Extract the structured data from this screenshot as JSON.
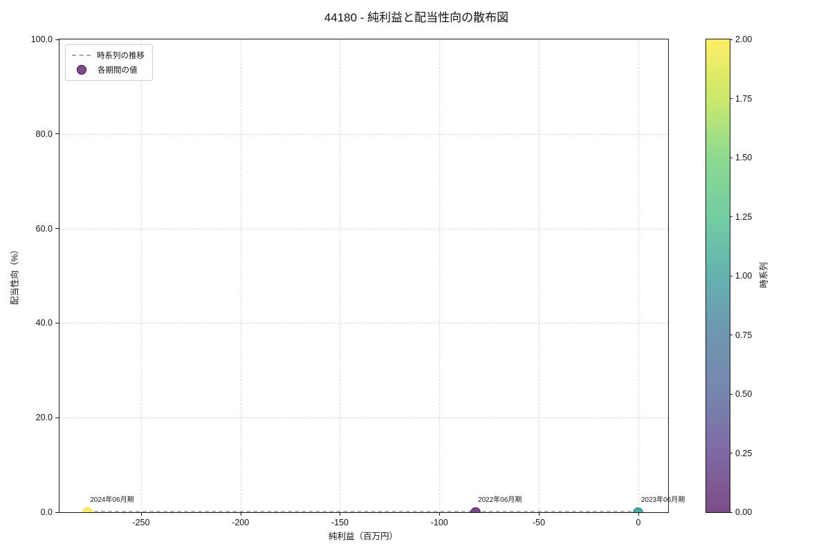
{
  "title": "44180 - 純利益と配当性向の散布図",
  "legend": {
    "items": [
      {
        "label": "時系列の推移",
        "type": "dashed-line",
        "color": "#a9a9a9"
      },
      {
        "label": "各期間の値",
        "type": "marker",
        "color": "#7c4d87",
        "edge": "#440154"
      }
    ]
  },
  "chart_data": {
    "type": "scatter",
    "title": "44180 - 純利益と配当性向の散布図",
    "xlabel": "純利益（百万円）",
    "ylabel": "配当性向（%）",
    "xlim": [
      -291,
      15
    ],
    "ylim": [
      0,
      100
    ],
    "grid": true,
    "x_ticks": [
      {
        "value": -250,
        "label": "-250"
      },
      {
        "value": -200,
        "label": "-200"
      },
      {
        "value": -150,
        "label": "-150"
      },
      {
        "value": -100,
        "label": "-100"
      },
      {
        "value": -50,
        "label": "-50"
      },
      {
        "value": 0,
        "label": "0"
      }
    ],
    "y_ticks": [
      {
        "value": 0,
        "label": "0.0"
      },
      {
        "value": 20,
        "label": "20.0"
      },
      {
        "value": 40,
        "label": "40.0"
      },
      {
        "value": 60,
        "label": "60.0"
      },
      {
        "value": 80,
        "label": "80.0"
      },
      {
        "value": 100,
        "label": "100.0"
      }
    ],
    "series": [
      {
        "name": "各期間の値",
        "points": [
          {
            "label": "2022年06月期",
            "x": -82,
            "y": 0.0,
            "t": 0,
            "color": "#7b4d88",
            "edge": "#440154"
          },
          {
            "label": "2023年06月期",
            "x": 0,
            "y": 0.0,
            "t": 1,
            "color": "#4da7a3",
            "edge": "#21918c"
          },
          {
            "label": "2024年06月期",
            "x": -277,
            "y": 0.0,
            "t": 2,
            "color": "#fdea6b",
            "edge": "#f2da30"
          }
        ]
      }
    ],
    "line": {
      "name": "時系列の推移",
      "style": "dashed",
      "color": "#b3b3b3",
      "path_x": [
        -82,
        0,
        -277
      ],
      "path_y": [
        0,
        0,
        0
      ]
    },
    "colorbar": {
      "label": "時系列",
      "min": 0,
      "max": 2,
      "ticks": [
        {
          "value": 0,
          "label": "0.00"
        },
        {
          "value": 0.25,
          "label": "0.25"
        },
        {
          "value": 0.5,
          "label": "0.50"
        },
        {
          "value": 0.75,
          "label": "0.75"
        },
        {
          "value": 1,
          "label": "1.00"
        },
        {
          "value": 1.25,
          "label": "1.25"
        },
        {
          "value": 1.5,
          "label": "1.50"
        },
        {
          "value": 1.75,
          "label": "1.75"
        },
        {
          "value": 2,
          "label": "2.00"
        }
      ],
      "gradient": [
        {
          "pos": 0,
          "color": "#7c4d87"
        },
        {
          "pos": 12.5,
          "color": "#7f69a1"
        },
        {
          "pos": 25,
          "color": "#7686ae"
        },
        {
          "pos": 37.5,
          "color": "#6f95b0"
        },
        {
          "pos": 50,
          "color": "#64b2af"
        },
        {
          "pos": 62.5,
          "color": "#72cda1"
        },
        {
          "pos": 75,
          "color": "#8ed991"
        },
        {
          "pos": 87.5,
          "color": "#cbe86b"
        },
        {
          "pos": 100,
          "color": "#feee66"
        }
      ]
    }
  }
}
